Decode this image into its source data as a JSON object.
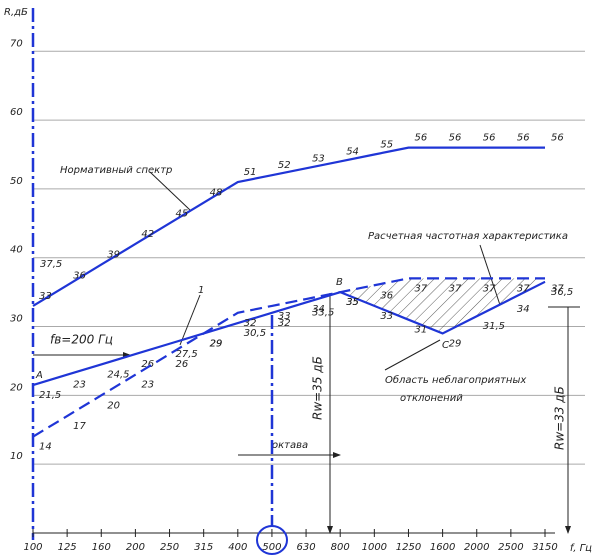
{
  "chart_data": {
    "type": "line",
    "x_label": "f, Гц",
    "y_label": "R,дБ",
    "categories": [
      "100",
      "125",
      "160",
      "200",
      "250",
      "315",
      "400",
      "500",
      "630",
      "800",
      "1000",
      "1250",
      "1600",
      "2000",
      "2500",
      "3150"
    ],
    "ylim": [
      0,
      76
    ],
    "yticks": [
      10,
      20,
      30,
      40,
      50,
      60,
      70
    ],
    "grid": true,
    "series": [
      {
        "name": "Нормативный спектр",
        "color": "#1f35d6",
        "dash": false,
        "values": [
          33,
          36,
          39,
          42,
          45,
          48,
          51,
          52,
          53,
          54,
          55,
          56,
          56,
          56,
          56,
          56
        ]
      },
      {
        "name": "Расчетная частотная характеристика",
        "color": "#1f35d6",
        "dash": false,
        "values": [
          21.5,
          23,
          24.5,
          26,
          27.5,
          29,
          30.5,
          32,
          33.5,
          35,
          33,
          31,
          29,
          31.5,
          34,
          36.5
        ],
        "value_labels": [
          "21,5",
          "23",
          "24,5",
          "26",
          "27,5",
          "29",
          "30,5",
          "32",
          "33,5",
          "35",
          "33",
          "31",
          "29",
          "31,5",
          "34",
          "36,5"
        ]
      },
      {
        "color": "#1f35d6",
        "dash": true,
        "values": [
          14,
          17,
          20,
          23,
          26,
          29,
          32,
          33,
          34,
          35,
          36,
          37,
          37,
          37,
          37,
          37
        ]
      }
    ],
    "annotations": {
      "shifted_start": "37,5",
      "fb": "fв=200 Гц",
      "octave": "октава",
      "rw_mid": "Rw=35 дБ",
      "rw_right": "Rw=33 дБ",
      "area": "Область неблагоприятных",
      "area2": "отклонений",
      "point_a": "А",
      "point_b": "В",
      "point_c": "С",
      "mark_1": "1"
    }
  }
}
